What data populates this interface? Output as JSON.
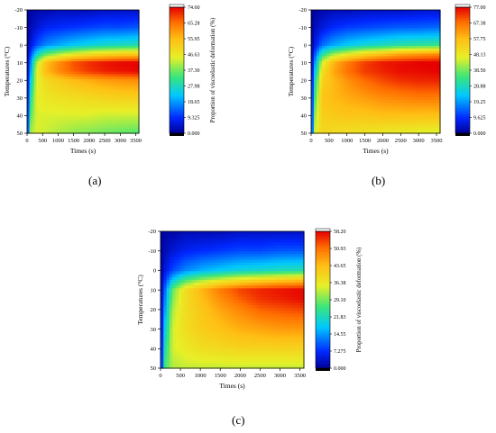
{
  "figure": {
    "panel_labels": [
      "(a)",
      "(b)",
      "(c)"
    ]
  },
  "chart_data": [
    {
      "type": "heatmap",
      "panel": "(a)",
      "xlabel": "Times (s)",
      "ylabel": "Temperatures (°C)",
      "colorbar_label": "Proportion of viscoelastic deformation (%)",
      "xlim": [
        0,
        3600
      ],
      "ylim": [
        -20,
        50
      ],
      "y_inverted": true,
      "x_ticks": [
        0,
        500,
        1000,
        1500,
        2000,
        2500,
        3000,
        3500
      ],
      "y_ticks": [
        -20,
        -10,
        0,
        10,
        20,
        30,
        40,
        50
      ],
      "colorbar_ticks": [
        "74.60",
        "65.28",
        "55.95",
        "46.63",
        "37.30",
        "27.98",
        "18.65",
        "9.325",
        "0.000"
      ],
      "colorbar_range": [
        0,
        74.6
      ],
      "temperatures": [
        -20,
        -10,
        0,
        5,
        10,
        15,
        20,
        30,
        40,
        50
      ],
      "times": [
        0,
        100,
        300,
        600,
        1000,
        1500,
        2000,
        2500,
        3000,
        3600
      ],
      "values": [
        [
          0,
          1,
          2,
          2,
          3,
          3,
          3,
          4,
          4,
          4
        ],
        [
          0,
          2,
          5,
          8,
          9,
          10,
          11,
          12,
          12,
          13
        ],
        [
          0,
          5,
          12,
          17,
          20,
          23,
          25,
          27,
          28,
          29
        ],
        [
          0,
          10,
          25,
          35,
          40,
          45,
          48,
          50,
          52,
          53
        ],
        [
          0,
          15,
          40,
          55,
          62,
          68,
          71,
          73,
          74,
          74.6
        ],
        [
          0,
          18,
          44,
          56,
          62,
          67,
          70,
          72,
          73,
          74
        ],
        [
          0,
          22,
          44,
          50,
          53,
          56,
          58,
          60,
          61,
          62
        ],
        [
          0,
          28,
          45,
          47,
          48,
          49,
          50,
          51,
          52,
          52
        ],
        [
          0,
          34,
          44,
          44,
          44,
          44,
          44,
          43,
          43,
          43
        ],
        [
          0,
          40,
          44,
          43,
          41,
          39,
          38,
          37,
          36,
          35
        ]
      ]
    },
    {
      "type": "heatmap",
      "panel": "(b)",
      "xlabel": "Times (s)",
      "ylabel": "Temperatures (°C)",
      "colorbar_label": "Proportion of viscoelastic deformation (%)",
      "xlim": [
        0,
        3600
      ],
      "ylim": [
        -20,
        50
      ],
      "y_inverted": true,
      "x_ticks": [
        0,
        500,
        1000,
        1500,
        2000,
        2500,
        3000,
        3500
      ],
      "y_ticks": [
        -20,
        -10,
        0,
        10,
        20,
        30,
        40,
        50
      ],
      "colorbar_ticks": [
        "77.00",
        "67.38",
        "57.75",
        "48.13",
        "38.50",
        "28.88",
        "19.25",
        "9.625",
        "0.000"
      ],
      "colorbar_range": [
        0,
        77
      ],
      "temperatures": [
        -20,
        -10,
        0,
        5,
        10,
        15,
        20,
        30,
        40,
        50
      ],
      "times": [
        0,
        100,
        300,
        600,
        1000,
        1500,
        2000,
        2500,
        3000,
        3600
      ],
      "values": [
        [
          0,
          1,
          2,
          3,
          3,
          4,
          4,
          4,
          5,
          5
        ],
        [
          0,
          3,
          6,
          9,
          11,
          12,
          13,
          14,
          14,
          15
        ],
        [
          0,
          6,
          15,
          20,
          24,
          27,
          29,
          31,
          32,
          33
        ],
        [
          0,
          12,
          30,
          40,
          46,
          52,
          56,
          60,
          62,
          64
        ],
        [
          0,
          18,
          45,
          58,
          66,
          72,
          75,
          76,
          77,
          77
        ],
        [
          0,
          22,
          50,
          60,
          67,
          72,
          74,
          76,
          76,
          77
        ],
        [
          0,
          28,
          53,
          58,
          63,
          68,
          71,
          73,
          74,
          74
        ],
        [
          0,
          34,
          56,
          58,
          60,
          62,
          64,
          65,
          66,
          66
        ],
        [
          0,
          40,
          54,
          55,
          56,
          56,
          57,
          57,
          57,
          57
        ],
        [
          0,
          45,
          52,
          51,
          50,
          49,
          48,
          47,
          46,
          45
        ]
      ]
    },
    {
      "type": "heatmap",
      "panel": "(c)",
      "xlabel": "Times (s)",
      "ylabel": "Temperatures (°C)",
      "colorbar_label": "Proportion of viscoelastic deformation (%)",
      "xlim": [
        0,
        3600
      ],
      "ylim": [
        -20,
        50
      ],
      "y_inverted": true,
      "x_ticks": [
        0,
        500,
        1000,
        1500,
        2000,
        2500,
        3000,
        3500
      ],
      "y_ticks": [
        -20,
        -10,
        0,
        10,
        20,
        30,
        40,
        50
      ],
      "colorbar_ticks": [
        "58.20",
        "50.93",
        "43.65",
        "36.38",
        "29.10",
        "21.83",
        "14.55",
        "7.275",
        "0.000"
      ],
      "colorbar_range": [
        0,
        58.2
      ],
      "temperatures": [
        -20,
        -10,
        0,
        5,
        10,
        15,
        20,
        30,
        40,
        50
      ],
      "times": [
        0,
        100,
        300,
        600,
        1000,
        1500,
        2000,
        2500,
        3000,
        3600
      ],
      "values": [
        [
          0,
          1,
          1,
          2,
          2,
          2,
          3,
          3,
          3,
          3
        ],
        [
          0,
          2,
          4,
          6,
          7,
          8,
          9,
          9,
          10,
          10
        ],
        [
          0,
          4,
          9,
          13,
          16,
          18,
          20,
          21,
          22,
          23
        ],
        [
          0,
          7,
          18,
          26,
          31,
          35,
          38,
          40,
          42,
          43
        ],
        [
          0,
          10,
          28,
          38,
          44,
          50,
          54,
          56,
          57,
          58
        ],
        [
          0,
          12,
          30,
          38,
          43,
          48,
          52,
          55,
          56,
          57.5
        ],
        [
          0,
          14,
          32,
          38,
          42,
          46,
          49,
          52,
          53,
          54
        ],
        [
          0,
          18,
          34,
          38,
          41,
          43,
          45,
          46,
          47,
          47
        ],
        [
          0,
          22,
          34,
          36,
          38,
          39,
          40,
          40,
          40,
          40
        ],
        [
          0,
          26,
          32,
          33,
          33,
          33,
          33,
          33,
          33,
          33
        ]
      ]
    }
  ]
}
